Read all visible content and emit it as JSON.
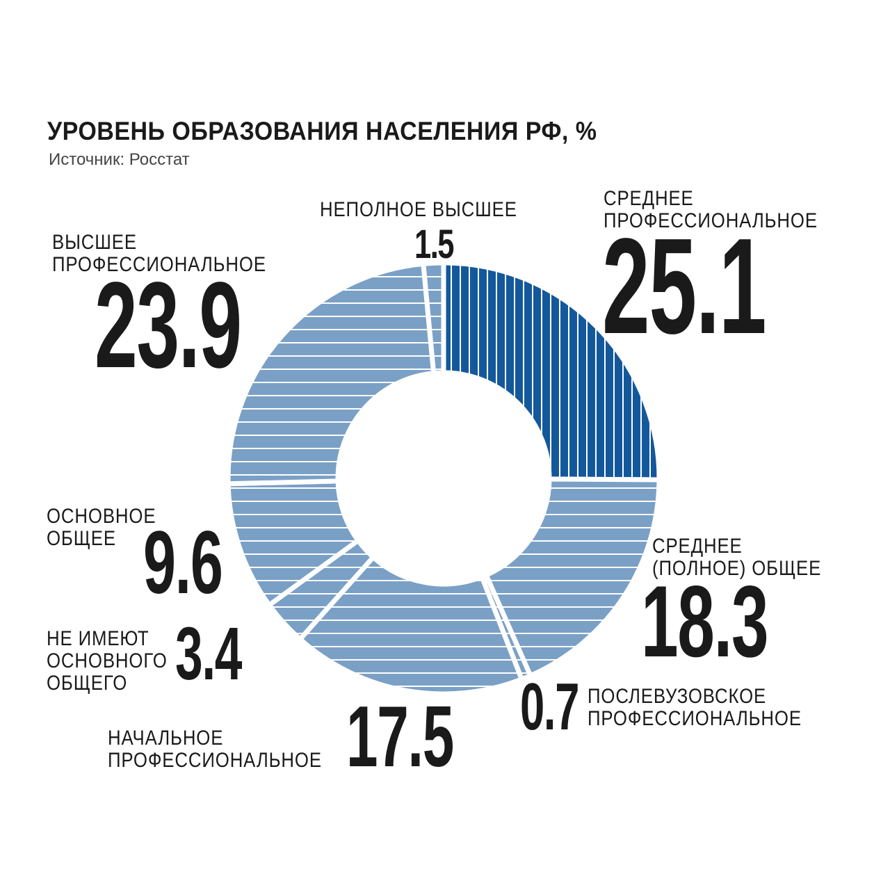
{
  "header": {
    "title": "УРОВЕНЬ ОБРАЗОВАНИЯ НАСЕЛЕНИЯ РФ, %",
    "source": "Источник: Росстат"
  },
  "colors": {
    "dark": "#14589c",
    "light": "#7aa0c6",
    "stripe": "#ffffff"
  },
  "chart_data": {
    "type": "pie",
    "variant": "donut",
    "title": "УРОВЕНЬ ОБРАЗОВАНИЯ НАСЕЛЕНИЯ РФ, %",
    "unit": "%",
    "slices": [
      {
        "label": "СРЕДНЕЕ ПРОФЕССИОНАЛЬНОЕ",
        "label_lines": [
          "СРЕДНЕЕ",
          "ПРОФЕССИОНАЛЬНОЕ"
        ],
        "value": 25.1,
        "display": "25.1",
        "style": "dark"
      },
      {
        "label": "СРЕДНЕЕ (ПОЛНОЕ) ОБЩЕЕ",
        "label_lines": [
          "СРЕДНЕЕ",
          "(ПОЛНОЕ) ОБЩЕЕ"
        ],
        "value": 18.3,
        "display": "18.3",
        "style": "light"
      },
      {
        "label": "ПОСЛЕВУЗОВСКОЕ ПРОФЕССИОНАЛЬНОЕ",
        "label_lines": [
          "ПОСЛЕВУЗОВСКОЕ",
          "ПРОФЕССИОНАЛЬНОЕ"
        ],
        "value": 0.7,
        "display": "0.7",
        "style": "light"
      },
      {
        "label": "НАЧАЛЬНОЕ ПРОФЕССИОНАЛЬНОЕ",
        "label_lines": [
          "НАЧАЛЬНОЕ",
          "ПРОФЕССИОНАЛЬНОЕ"
        ],
        "value": 17.5,
        "display": "17.5",
        "style": "light"
      },
      {
        "label": "НЕ ИМЕЮТ ОСНОВНОГО ОБЩЕГО",
        "label_lines": [
          "НЕ ИМЕЮТ",
          "ОСНОВНОГО",
          "ОБЩЕГО"
        ],
        "value": 3.4,
        "display": "3.4",
        "style": "light"
      },
      {
        "label": "ОСНОВНОЕ ОБЩЕЕ",
        "label_lines": [
          "ОСНОВНОЕ",
          "ОБЩЕЕ"
        ],
        "value": 9.6,
        "display": "9.6",
        "style": "light"
      },
      {
        "label": "ВЫСШЕЕ ПРОФЕССИОНАЛЬНОЕ",
        "label_lines": [
          "ВЫСШЕЕ",
          "ПРОФЕССИОНАЛЬНОЕ"
        ],
        "value": 23.9,
        "display": "23.9",
        "style": "light"
      },
      {
        "label": "НЕПОЛНОЕ ВЫСШЕЕ",
        "label_lines": [
          "НЕПОЛНОЕ ВЫСШЕЕ"
        ],
        "value": 1.5,
        "display": "1.5",
        "style": "light"
      }
    ]
  }
}
